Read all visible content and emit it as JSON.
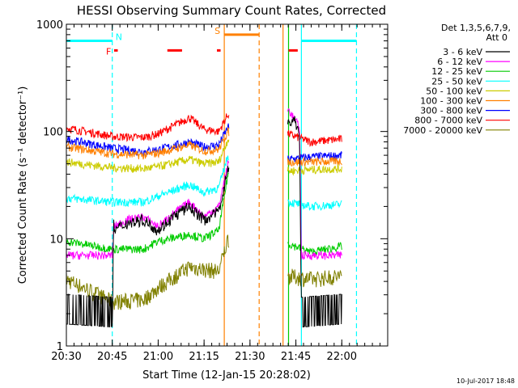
{
  "chart_data": {
    "type": "line",
    "title": "HESSI Observing Summary Count Rates, Corrected",
    "xlabel": "Start Time (12-Jan-15 20:28:02)",
    "ylabel": "Corrected Count Rate (s⁻¹ detector⁻¹)",
    "footer": "10-Jul-2017 18:48",
    "y_scale": "log",
    "ylim": [
      1,
      1000
    ],
    "xlim_minutes": [
      20.5,
      22.25
    ],
    "x_ticks": [
      "20:30",
      "20:45",
      "21:00",
      "21:15",
      "21:30",
      "21:45",
      "22:00"
    ],
    "x_tick_values": [
      20.5,
      20.75,
      21.0,
      21.25,
      21.5,
      21.75,
      22.0
    ],
    "y_ticks": [
      "1",
      "10",
      "100",
      "1000"
    ],
    "y_tick_values": [
      1,
      10,
      100,
      1000
    ],
    "legend": {
      "placement": "right",
      "header": [
        "Det 1,3,5,6,7,9,",
        "Att 0"
      ]
    },
    "series": [
      {
        "name": "3 - 6 keV",
        "color": "#000000",
        "points": [
          [
            20.5,
            1.6
          ],
          [
            20.75,
            1.5
          ],
          [
            20.76,
            12
          ],
          [
            20.83,
            14
          ],
          [
            20.92,
            15
          ],
          [
            21.0,
            12
          ],
          [
            21.08,
            16
          ],
          [
            21.17,
            20
          ],
          [
            21.25,
            15
          ],
          [
            21.33,
            18
          ],
          [
            21.38,
            45
          ],
          [
            21.74,
            130
          ],
          [
            21.77,
            100
          ],
          [
            21.78,
            1.5
          ],
          [
            22.0,
            1.6
          ]
        ]
      },
      {
        "name": "6 - 12 keV",
        "color": "#ff00ff",
        "points": [
          [
            20.5,
            7
          ],
          [
            20.75,
            7
          ],
          [
            20.76,
            13
          ],
          [
            20.83,
            15
          ],
          [
            20.92,
            16
          ],
          [
            21.0,
            13
          ],
          [
            21.08,
            17
          ],
          [
            21.17,
            22
          ],
          [
            21.25,
            16
          ],
          [
            21.33,
            20
          ],
          [
            21.38,
            50
          ],
          [
            21.71,
            160
          ],
          [
            21.77,
            110
          ],
          [
            21.78,
            7
          ],
          [
            22.0,
            7
          ]
        ]
      },
      {
        "name": "12 - 25 keV",
        "color": "#00cc00",
        "points": [
          [
            20.5,
            9.5
          ],
          [
            20.75,
            8
          ],
          [
            20.92,
            8
          ],
          [
            21.0,
            9.5
          ],
          [
            21.17,
            11
          ],
          [
            21.25,
            10
          ],
          [
            21.33,
            12
          ],
          [
            21.38,
            40
          ],
          [
            21.71,
            9
          ],
          [
            21.83,
            7.5
          ],
          [
            22.0,
            8.5
          ]
        ]
      },
      {
        "name": "25 - 50 keV",
        "color": "#00ffff",
        "points": [
          [
            20.5,
            24
          ],
          [
            20.75,
            22
          ],
          [
            20.92,
            22
          ],
          [
            21.0,
            25
          ],
          [
            21.17,
            32
          ],
          [
            21.25,
            27
          ],
          [
            21.33,
            30
          ],
          [
            21.38,
            60
          ],
          [
            21.71,
            22
          ],
          [
            21.83,
            20
          ],
          [
            22.0,
            21
          ]
        ]
      },
      {
        "name": "50 - 100 keV",
        "color": "#cccc00",
        "points": [
          [
            20.5,
            52
          ],
          [
            20.75,
            46
          ],
          [
            20.92,
            45
          ],
          [
            21.0,
            47
          ],
          [
            21.17,
            55
          ],
          [
            21.25,
            50
          ],
          [
            21.33,
            52
          ],
          [
            21.38,
            85
          ],
          [
            21.71,
            43
          ],
          [
            21.83,
            44
          ],
          [
            22.0,
            45
          ]
        ]
      },
      {
        "name": "100 - 300 keV",
        "color": "#ff8000",
        "points": [
          [
            20.5,
            72
          ],
          [
            20.75,
            62
          ],
          [
            20.92,
            60
          ],
          [
            21.0,
            63
          ],
          [
            21.17,
            75
          ],
          [
            21.25,
            66
          ],
          [
            21.33,
            68
          ],
          [
            21.38,
            100
          ],
          [
            21.71,
            52
          ],
          [
            21.83,
            52
          ],
          [
            22.0,
            53
          ]
        ]
      },
      {
        "name": "300 - 800 keV",
        "color": "#0000ff",
        "points": [
          [
            20.5,
            85
          ],
          [
            20.75,
            70
          ],
          [
            20.92,
            65
          ],
          [
            21.0,
            68
          ],
          [
            21.17,
            80
          ],
          [
            21.25,
            72
          ],
          [
            21.33,
            75
          ],
          [
            21.38,
            110
          ],
          [
            21.71,
            55
          ],
          [
            21.83,
            58
          ],
          [
            22.0,
            60
          ]
        ]
      },
      {
        "name": "800 - 7000 keV",
        "color": "#ff0000",
        "points": [
          [
            20.5,
            108
          ],
          [
            20.75,
            90
          ],
          [
            20.92,
            88
          ],
          [
            21.0,
            95
          ],
          [
            21.17,
            135
          ],
          [
            21.25,
            105
          ],
          [
            21.33,
            100
          ],
          [
            21.38,
            145
          ],
          [
            21.71,
            95
          ],
          [
            21.83,
            80
          ],
          [
            22.0,
            85
          ]
        ]
      },
      {
        "name": "7000 - 20000 keV",
        "color": "#808000",
        "points": [
          [
            20.5,
            4.2
          ],
          [
            20.75,
            2.6
          ],
          [
            20.92,
            2.7
          ],
          [
            21.0,
            3.5
          ],
          [
            21.17,
            5.5
          ],
          [
            21.25,
            5.2
          ],
          [
            21.33,
            5.0
          ],
          [
            21.38,
            10
          ],
          [
            21.71,
            4.5
          ],
          [
            21.83,
            4.2
          ],
          [
            22.0,
            4.5
          ]
        ]
      }
    ],
    "flags": [
      {
        "label": "N",
        "color": "#00ffff",
        "level": 700,
        "segments": [
          [
            20.5,
            20.75
          ],
          [
            21.78,
            22.08
          ]
        ]
      },
      {
        "label": "F",
        "color": "#ff0000",
        "level": 570,
        "segments": [
          [
            20.76,
            20.78
          ],
          [
            21.05,
            21.13
          ],
          [
            21.32,
            21.34
          ],
          [
            21.71,
            21.76
          ]
        ]
      },
      {
        "label": "S",
        "color": "#ff8000",
        "level": 800,
        "segments": [
          [
            21.36,
            21.55
          ]
        ]
      }
    ],
    "vertical_markers": [
      {
        "x": 20.75,
        "color": "#00ffff",
        "style": "dashed"
      },
      {
        "x": 22.08,
        "color": "#00ffff",
        "style": "dashed"
      },
      {
        "x": 21.36,
        "color": "#ff8000",
        "style": "solid"
      },
      {
        "x": 21.55,
        "color": "#ff8000",
        "style": "dashed"
      },
      {
        "x": 21.68,
        "color": "#ff8000",
        "style": "solid"
      },
      {
        "x": 21.71,
        "color": "#00cc00",
        "style": "solid"
      },
      {
        "x": 21.78,
        "color": "#00ffff",
        "style": "solid"
      }
    ]
  }
}
